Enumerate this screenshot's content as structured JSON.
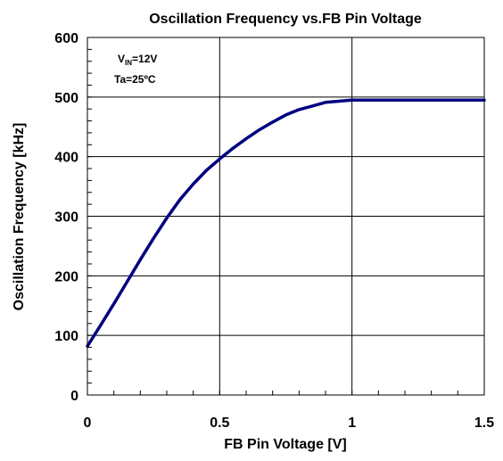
{
  "chart_data": {
    "type": "line",
    "title": "Oscillation Frequency vs.FB Pin Voltage",
    "xlabel": "FB Pin Voltage [V]",
    "ylabel": "Oscillation Frequency [kHz]",
    "xlim": [
      0,
      1.5
    ],
    "ylim": [
      0,
      600
    ],
    "xticks": [
      0,
      0.5,
      1,
      1.5
    ],
    "xtick_labels": [
      "0",
      "0.5",
      "1",
      "1.5"
    ],
    "yticks": [
      0,
      100,
      200,
      300,
      400,
      500,
      600
    ],
    "ytick_labels": [
      "0",
      "100",
      "200",
      "300",
      "400",
      "500",
      "600"
    ],
    "grid": true,
    "annotation": {
      "line1_main": "V",
      "line1_sub": "IN",
      "line1_rest": "=12V",
      "line2": "Ta=25ºC"
    },
    "series": [
      {
        "color": "#000080",
        "x": [
          0,
          0.05,
          0.1,
          0.15,
          0.2,
          0.25,
          0.3,
          0.35,
          0.4,
          0.45,
          0.5,
          0.55,
          0.6,
          0.65,
          0.7,
          0.75,
          0.8,
          0.85,
          0.9,
          0.95,
          1.0,
          1.1,
          1.2,
          1.3,
          1.4,
          1.5
        ],
        "y": [
          82,
          117,
          153,
          190,
          227,
          263,
          297,
          328,
          354,
          377,
          396,
          414,
          430,
          445,
          458,
          470,
          479,
          485,
          491,
          493,
          495,
          495,
          495,
          495,
          495,
          495
        ]
      }
    ]
  }
}
